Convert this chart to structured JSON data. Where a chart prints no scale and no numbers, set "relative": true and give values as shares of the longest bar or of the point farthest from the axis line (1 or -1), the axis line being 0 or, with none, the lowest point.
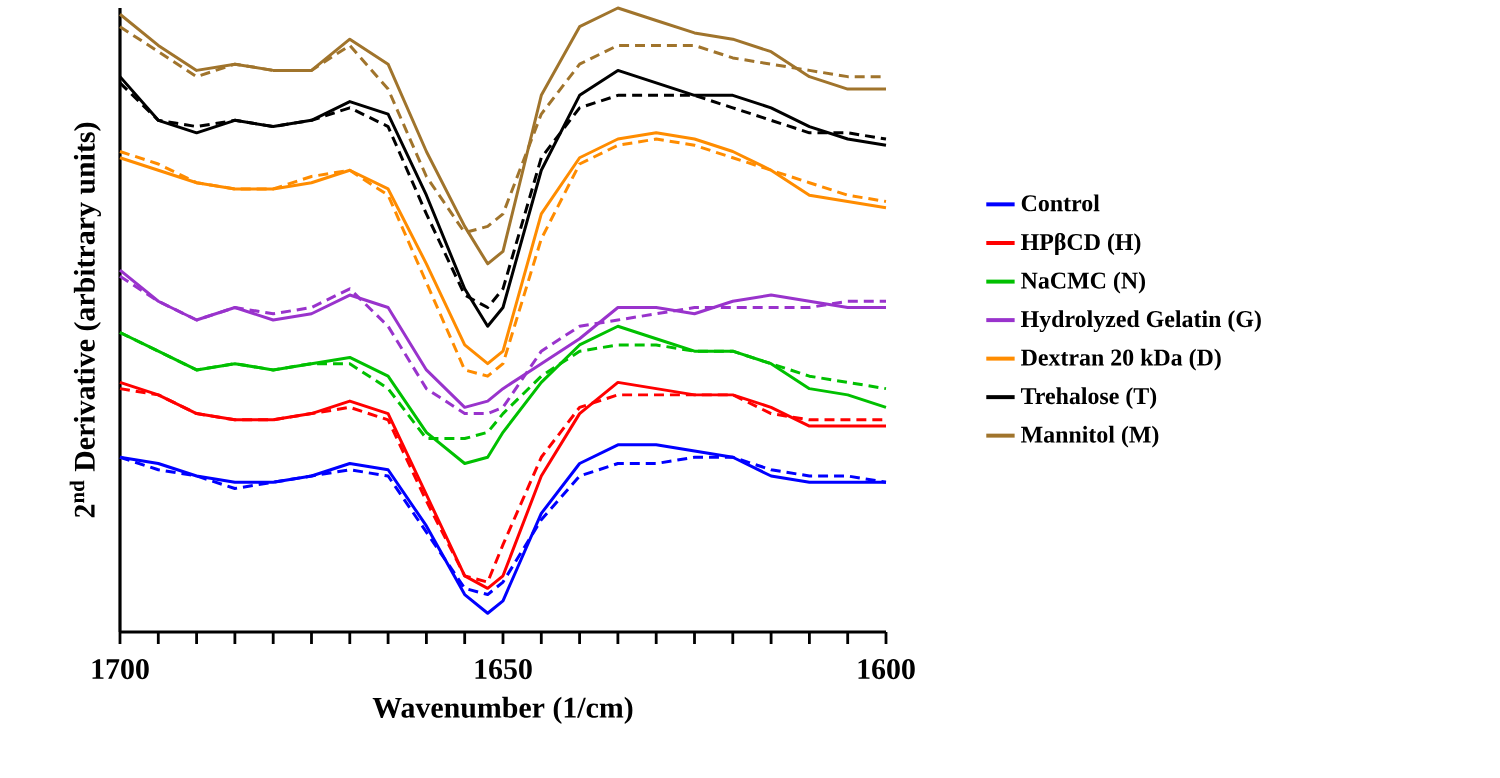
{
  "chart_data": {
    "type": "line",
    "relative": true,
    "xlabel": "Wavenumber (1/cm)",
    "ylabel": "2$^{nd}$ Derivative (arbitrary units)",
    "xlim": [
      1700,
      1600
    ],
    "xticks": [
      1700,
      {
        "value": 1695,
        "label": null
      },
      {
        "value": 1690,
        "label": null
      },
      {
        "value": 1685,
        "label": null
      },
      {
        "value": 1680,
        "label": null
      },
      {
        "value": 1675,
        "label": null
      },
      {
        "value": 1670,
        "label": null
      },
      {
        "value": 1665,
        "label": null
      },
      {
        "value": 1660,
        "label": null
      },
      {
        "value": 1655,
        "label": null
      },
      1650,
      {
        "value": 1645,
        "label": null
      },
      {
        "value": 1640,
        "label": null
      },
      {
        "value": 1635,
        "label": null
      },
      {
        "value": 1630,
        "label": null
      },
      {
        "value": 1625,
        "label": null
      },
      {
        "value": 1620,
        "label": null
      },
      {
        "value": 1615,
        "label": null
      },
      {
        "value": 1610,
        "label": null
      },
      {
        "value": 1605,
        "label": null
      },
      1600
    ],
    "x": [
      1700,
      1695,
      1690,
      1685,
      1680,
      1675,
      1670,
      1665,
      1660,
      1655,
      1652,
      1650,
      1645,
      1640,
      1635,
      1630,
      1625,
      1620,
      1615,
      1610,
      1605,
      1600
    ],
    "legend": "right",
    "line_style": "solid",
    "grid": false,
    "series": [
      {
        "name": "Control",
        "color": "#0000ff",
        "values": [
          0.28,
          0.27,
          0.25,
          0.24,
          0.24,
          0.25,
          0.27,
          0.26,
          0.17,
          0.06,
          0.03,
          0.05,
          0.19,
          0.27,
          0.3,
          0.3,
          0.29,
          0.28,
          0.25,
          0.24,
          0.24,
          0.24
        ]
      },
      {
        "color": "#0000ff",
        "line_style": "dashed",
        "values": [
          0.28,
          0.26,
          0.25,
          0.23,
          0.24,
          0.25,
          0.26,
          0.25,
          0.16,
          0.07,
          0.06,
          0.08,
          0.18,
          0.25,
          0.27,
          0.27,
          0.28,
          0.28,
          0.26,
          0.25,
          0.25,
          0.24
        ]
      },
      {
        "name": "HPβCD (H)",
        "color": "#ff0000",
        "values": [
          0.4,
          0.38,
          0.35,
          0.34,
          0.34,
          0.35,
          0.37,
          0.35,
          0.22,
          0.09,
          0.07,
          0.09,
          0.25,
          0.35,
          0.4,
          0.39,
          0.38,
          0.38,
          0.36,
          0.33,
          0.33,
          0.33
        ]
      },
      {
        "color": "#ff0000",
        "line_style": "dashed",
        "values": [
          0.39,
          0.38,
          0.35,
          0.34,
          0.34,
          0.35,
          0.36,
          0.34,
          0.21,
          0.09,
          0.08,
          0.14,
          0.28,
          0.36,
          0.38,
          0.38,
          0.38,
          0.38,
          0.35,
          0.34,
          0.34,
          0.34
        ]
      },
      {
        "name": "NaCMC (N)",
        "color": "#00c000",
        "values": [
          0.48,
          0.45,
          0.42,
          0.43,
          0.42,
          0.43,
          0.44,
          0.41,
          0.32,
          0.27,
          0.28,
          0.32,
          0.4,
          0.46,
          0.49,
          0.47,
          0.45,
          0.45,
          0.43,
          0.39,
          0.38,
          0.36
        ]
      },
      {
        "color": "#00c000",
        "line_style": "dashed",
        "values": [
          0.48,
          0.45,
          0.42,
          0.43,
          0.42,
          0.43,
          0.43,
          0.39,
          0.31,
          0.31,
          0.32,
          0.35,
          0.41,
          0.45,
          0.46,
          0.46,
          0.45,
          0.45,
          0.43,
          0.41,
          0.4,
          0.39
        ]
      },
      {
        "name": "Hydrolyzed Gelatin (G)",
        "color": "#9933cc",
        "values": [
          0.58,
          0.53,
          0.5,
          0.52,
          0.5,
          0.51,
          0.54,
          0.52,
          0.42,
          0.36,
          0.37,
          0.39,
          0.43,
          0.47,
          0.52,
          0.52,
          0.51,
          0.53,
          0.54,
          0.53,
          0.52,
          0.52
        ]
      },
      {
        "color": "#9933cc",
        "line_style": "dashed",
        "values": [
          0.57,
          0.53,
          0.5,
          0.52,
          0.51,
          0.52,
          0.55,
          0.49,
          0.39,
          0.35,
          0.35,
          0.36,
          0.45,
          0.49,
          0.5,
          0.51,
          0.52,
          0.52,
          0.52,
          0.52,
          0.53,
          0.53
        ]
      },
      {
        "name": "Dextran 20 kDa (D)",
        "color": "#ff8c00",
        "values": [
          0.76,
          0.74,
          0.72,
          0.71,
          0.71,
          0.72,
          0.74,
          0.71,
          0.59,
          0.46,
          0.43,
          0.45,
          0.67,
          0.76,
          0.79,
          0.8,
          0.79,
          0.77,
          0.74,
          0.7,
          0.69,
          0.68
        ]
      },
      {
        "color": "#ff8c00",
        "line_style": "dashed",
        "values": [
          0.77,
          0.75,
          0.72,
          0.71,
          0.71,
          0.73,
          0.74,
          0.7,
          0.56,
          0.42,
          0.41,
          0.43,
          0.63,
          0.75,
          0.78,
          0.79,
          0.78,
          0.76,
          0.74,
          0.72,
          0.7,
          0.69
        ]
      },
      {
        "name": "Trehalose (T)",
        "color": "#000000",
        "values": [
          0.89,
          0.82,
          0.8,
          0.82,
          0.81,
          0.82,
          0.85,
          0.83,
          0.7,
          0.55,
          0.49,
          0.52,
          0.74,
          0.86,
          0.9,
          0.88,
          0.86,
          0.86,
          0.84,
          0.81,
          0.79,
          0.78
        ]
      },
      {
        "color": "#000000",
        "line_style": "dashed",
        "values": [
          0.88,
          0.82,
          0.81,
          0.82,
          0.81,
          0.82,
          0.84,
          0.81,
          0.67,
          0.54,
          0.52,
          0.55,
          0.76,
          0.84,
          0.86,
          0.86,
          0.86,
          0.84,
          0.82,
          0.8,
          0.8,
          0.79
        ]
      },
      {
        "name": "Mannitol (M)",
        "color": "#a0742c",
        "values": [
          0.99,
          0.94,
          0.9,
          0.91,
          0.9,
          0.9,
          0.95,
          0.91,
          0.77,
          0.65,
          0.59,
          0.61,
          0.86,
          0.97,
          1.0,
          0.98,
          0.96,
          0.95,
          0.93,
          0.89,
          0.87,
          0.87
        ]
      },
      {
        "color": "#a0742c",
        "line_style": "dashed",
        "values": [
          0.97,
          0.93,
          0.89,
          0.91,
          0.9,
          0.9,
          0.94,
          0.87,
          0.73,
          0.64,
          0.65,
          0.67,
          0.83,
          0.91,
          0.94,
          0.94,
          0.94,
          0.92,
          0.91,
          0.9,
          0.89,
          0.89
        ]
      }
    ]
  }
}
